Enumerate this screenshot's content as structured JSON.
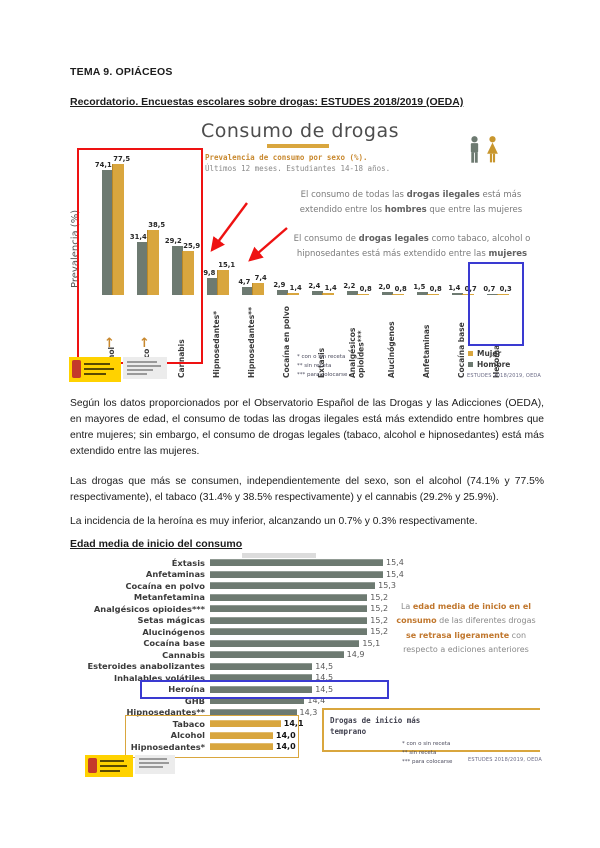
{
  "document": {
    "title": "TEMA 9. OPIÁCEOS",
    "heading_recordatorio": "Recordatorio. Encuestas escolares sobre drogas: ESTUDES 2018/2019 (OEDA)",
    "paragraph_1": "Según los datos proporcionados por el Observatorio Español de las Drogas y las Adicciones (OEDA), en mayores de edad, el consumo de todas las drogas ilegales está más extendido entre hombres que entre mujeres; sin embargo, el consumo de drogas legales (tabaco, alcohol e hipnosedantes) está más extendido entre las mujeres.",
    "paragraph_2": "Las drogas que más se consumen, independientemente del sexo, son el alcohol (74.1% y 77.5% respectivamente), el tabaco (31.4% y 38.5% respectivamente) y el cannabis (29.2% y 25.9%).",
    "paragraph_3": "La incidencia de la heroína es muy inferior, alcanzando un 0.7% y 0.3% respectivamente.",
    "heading_edad_media": "Edad media de inicio del consumo"
  },
  "icons": {
    "up_arrow": "↑",
    "male_icon": "hombre-silhouette",
    "female_icon": "mujer-silhouette"
  },
  "colors": {
    "hombre_bar": "#6d7a71",
    "mujer_bar": "#d9a63e",
    "accent_orange": "#c8882e",
    "highlight_red": "#ee1212",
    "highlight_blue": "#3a3ad1",
    "logo_yellow": "#ffd200"
  },
  "chart_data": [
    {
      "type": "bar",
      "title": "Consumo de drogas",
      "subtitle_bold": "Prevalencia de consumo por sexo (%).",
      "subtitle": "Últimos 12 meses. Estudiantes 14-18 años.",
      "ylabel": "Prevalencia (%)",
      "ylim": [
        0,
        80
      ],
      "grid": false,
      "legend_position": "bottom-right",
      "categories": [
        "Alcohol",
        "Tabaco",
        "Cannabis",
        "Hipnosedantes*",
        "Hipnosedantes**",
        "Cocaína en polvo",
        "Éxtasis",
        "Analgésicos opioides***",
        "Alucinógenos",
        "Anfetaminas",
        "Cocaína base",
        "Heroína"
      ],
      "series": [
        {
          "name": "Hombre",
          "color": "#6d7a71",
          "values": [
            74.1,
            31.4,
            29.2,
            9.8,
            4.7,
            2.9,
            2.4,
            2.2,
            2.0,
            1.5,
            1.4,
            0.7
          ]
        },
        {
          "name": "Mujer",
          "color": "#d9a63e",
          "values": [
            77.5,
            38.5,
            25.9,
            15.1,
            7.4,
            1.4,
            1.4,
            0.8,
            0.8,
            0.8,
            0.7,
            0.3
          ]
        }
      ],
      "legend": [
        "Mujer",
        "Hombre"
      ],
      "annotations": [
        "El consumo de todas las **drogas ilegales** está más extendido entre los **hombres** que entre las mujeres",
        "El consumo de **drogas legales** como tabaco, alcohol o hipnosedantes está más extendido entre las **mujeres**"
      ],
      "up_arrow_categories": [
        "Alcohol",
        "Tabaco"
      ],
      "red_box_categories": [
        "Alcohol",
        "Tabaco",
        "Cannabis"
      ],
      "blue_box_category": "Heroína",
      "footnotes": [
        "*   con o sin receta",
        "**  sin receta",
        "*** para colocarse"
      ],
      "source": "ESTUDES 2018/2019, OEDA"
    },
    {
      "type": "bar",
      "orientation": "horizontal",
      "xlim": [
        13.2,
        15.5
      ],
      "grid": false,
      "categories": [
        "Éxtasis",
        "Anfetaminas",
        "Cocaína en polvo",
        "Metanfetamina",
        "Analgésicos opioides***",
        "Setas mágicas",
        "Alucinógenos",
        "Cocaína base",
        "Cannabis",
        "Esteroides anabolizantes",
        "Inhalables volátiles",
        "Heroína",
        "GHB",
        "Hipnosedantes**",
        "Tabaco",
        "Alcohol",
        "Hipnosedantes*"
      ],
      "values": [
        15.4,
        15.4,
        15.3,
        15.2,
        15.2,
        15.2,
        15.2,
        15.1,
        14.9,
        14.5,
        14.5,
        14.5,
        14.4,
        14.3,
        14.1,
        14.0,
        14.0
      ],
      "gold_categories": [
        "Tabaco",
        "Alcohol",
        "Hipnosedantes*"
      ],
      "blue_box_category": "Heroína",
      "annotation": "La **edad media de inicio** **en el consumo** de las diferentes drogas **se retrasa ligeramente** con respecto a ediciones anteriores",
      "box_label": "Drogas de inicio más temprano",
      "footnotes": [
        "*   con o sin receta",
        "**  sin receta",
        "*** para colocarse"
      ],
      "source": "ESTUDES 2018/2019, OEDA"
    }
  ]
}
